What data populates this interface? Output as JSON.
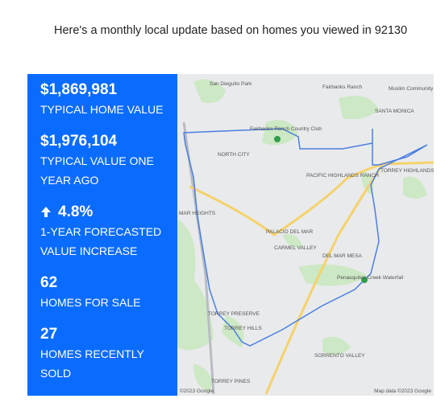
{
  "header": {
    "title": "Here's a monthly local update based on homes you viewed in 92130"
  },
  "stats": [
    {
      "value": "$1,869,981",
      "label_lines": [
        "TYPICAL HOME VALUE"
      ]
    },
    {
      "value": "$1,976,104",
      "label_lines": [
        "TYPICAL VALUE ONE",
        "YEAR AGO"
      ]
    },
    {
      "value": "4.8%",
      "label_lines": [
        "1-YEAR FORECASTED",
        "VALUE INCREASE"
      ]
    },
    {
      "value": "62",
      "label_lines": [
        "HOMES FOR SALE"
      ]
    },
    {
      "value": "27",
      "label_lines": [
        "HOMES RECENTLY",
        "SOLD"
      ]
    }
  ],
  "map": {
    "labels": [
      "San Dieguito Park",
      "Fairbanks Ranch",
      "Muslim Community Center of Greater",
      "SANTA MONICA",
      "Fairbanks Ranch Country Club",
      "NORTH CITY",
      "PACIFIC HIGHLANDS RANCH",
      "TORREY HIGHLANDS",
      "MAR HEIGHTS",
      "PALACIO DEL MAR",
      "CARMEL VALLEY",
      "DEL MAR MESA",
      "Penasquitos Creek Waterfall",
      "TORREY PRESERVE",
      "TORREY HILLS",
      "SORRENTO VALLEY",
      "TORREY PINES"
    ],
    "attribution_left": "©2023 Google",
    "attribution_right": "Map data ©2023 Google"
  }
}
